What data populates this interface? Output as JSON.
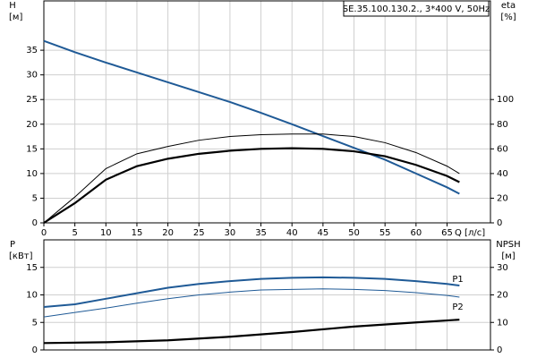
{
  "chart_data": [
    {
      "type": "line",
      "title": "SE.35.100.130.2., 3*400 V, 50Hz",
      "xlabel": "Q [л/с]",
      "ylabel": [
        "H",
        "[м]"
      ],
      "y2label": [
        "eta",
        "[%]"
      ],
      "xlim": [
        0,
        72
      ],
      "xticks": [
        0,
        5,
        10,
        15,
        20,
        25,
        30,
        35,
        40,
        45,
        50,
        55,
        60,
        65
      ],
      "ylim": [
        0,
        45
      ],
      "yticks": [
        0,
        5,
        10,
        15,
        20,
        25,
        30,
        35
      ],
      "y2lim": [
        0,
        180
      ],
      "y2ticks": [
        0,
        20,
        40,
        60,
        80,
        100
      ],
      "grid": true,
      "series": [
        {
          "color": "#1f5a96",
          "width": 2,
          "x": [
            0,
            5,
            10,
            15,
            20,
            25,
            30,
            35,
            40,
            45,
            50,
            55,
            60,
            65,
            67
          ],
          "values": [
            36.9,
            34.6,
            32.5,
            30.5,
            28.5,
            26.5,
            24.5,
            22.3,
            20,
            17.6,
            15.2,
            12.8,
            10,
            7.2,
            5.9
          ]
        },
        {
          "color": "#000000",
          "width": 1,
          "axis": "y2",
          "x": [
            0,
            5,
            10,
            15,
            20,
            25,
            30,
            35,
            40,
            45,
            50,
            55,
            60,
            65,
            67
          ],
          "values": [
            0,
            21,
            44,
            56,
            62,
            67,
            70,
            71.5,
            72,
            72,
            70,
            65,
            57,
            46,
            40
          ]
        },
        {
          "color": "#000000",
          "width": 2.2,
          "axis": "y2",
          "x": [
            0,
            5,
            10,
            15,
            20,
            25,
            30,
            35,
            40,
            45,
            50,
            55,
            60,
            65,
            67
          ],
          "values": [
            0,
            16,
            35,
            46,
            52,
            56,
            58.5,
            60,
            60.5,
            60,
            58,
            54,
            47,
            38,
            33
          ]
        }
      ]
    },
    {
      "type": "line",
      "ylabel": [
        "P",
        "[кВт]"
      ],
      "y2label": [
        "NPSH",
        "[м]"
      ],
      "xlim": [
        0,
        72
      ],
      "ylim": [
        0,
        20
      ],
      "yticks": [
        0,
        5,
        10,
        15
      ],
      "y2lim": [
        0,
        40
      ],
      "y2ticks": [
        0,
        10,
        20,
        30
      ],
      "grid": true,
      "series": [
        {
          "name": "P1",
          "color": "#1f5a96",
          "width": 2,
          "x": [
            0,
            5,
            10,
            15,
            20,
            25,
            30,
            35,
            40,
            45,
            50,
            55,
            60,
            65,
            67
          ],
          "values": [
            7.8,
            8.3,
            9.3,
            10.3,
            11.3,
            12,
            12.5,
            12.9,
            13.1,
            13.2,
            13.1,
            12.9,
            12.5,
            12,
            11.7
          ]
        },
        {
          "name": "P2",
          "color": "#1f5a96",
          "width": 1,
          "x": [
            0,
            5,
            10,
            15,
            20,
            25,
            30,
            35,
            40,
            45,
            50,
            55,
            60,
            65,
            67
          ],
          "values": [
            6,
            6.8,
            7.6,
            8.5,
            9.3,
            10,
            10.5,
            10.9,
            11,
            11.1,
            11,
            10.8,
            10.4,
            9.9,
            9.6
          ]
        },
        {
          "color": "#000000",
          "width": 2.2,
          "axis": "y2",
          "x": [
            0,
            10,
            20,
            30,
            40,
            50,
            60,
            67
          ],
          "values": [
            2.5,
            2.8,
            3.5,
            4.8,
            6.5,
            8.5,
            10,
            11
          ]
        }
      ]
    }
  ]
}
